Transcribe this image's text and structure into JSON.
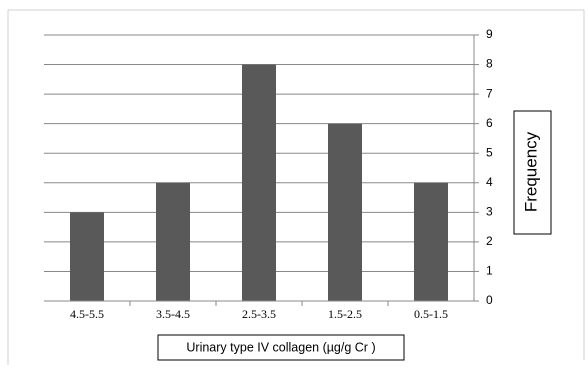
{
  "chart_data": {
    "type": "bar",
    "categories": [
      "4.5-5.5",
      "3.5-4.5",
      "2.5-3.5",
      "1.5-2.5",
      "0.5-1.5"
    ],
    "values": [
      3,
      4,
      8,
      6,
      4
    ],
    "xlabel": "Urinary type IV collagen (µg/g Cr )",
    "ylabel": "Frequency",
    "ylim": [
      0,
      9
    ],
    "yticks": [
      0,
      1,
      2,
      3,
      4,
      5,
      6,
      7,
      8,
      9
    ],
    "y_axis_side": "right",
    "grid": true,
    "legend": "none",
    "bar_color": "#595959"
  }
}
